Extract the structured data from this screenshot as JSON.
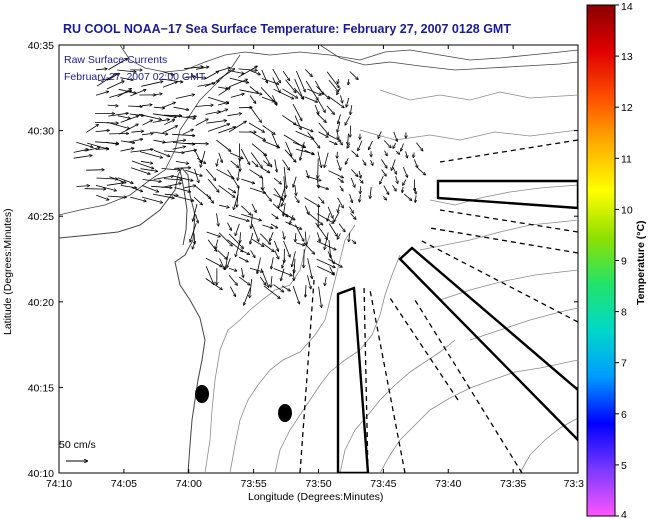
{
  "title": "RU COOL  NOAA−17  Sea Surface Temperature:  February 27, 2007 0128 GMT",
  "legend": {
    "line1": "Raw Surface Currents",
    "line2": "February 27, 2007 02:00 GMT"
  },
  "scale_label": "50 cm/s",
  "axes": {
    "xlabel": "Longitude (Degrees:Minutes)",
    "ylabel": "Latitude (Degrees:Minutes)",
    "xticks": [
      "74:10",
      "74:05",
      "74:00",
      "73:55",
      "73:50",
      "73:45",
      "73:40",
      "73:35",
      "73:3"
    ],
    "yticks": [
      "40:35",
      "40:30",
      "40:25",
      "40:20",
      "40:15",
      "40:10"
    ]
  },
  "colorbar": {
    "label": "Temperature (°C)",
    "ticks": [
      "14",
      "13",
      "12",
      "11",
      "10",
      "9",
      "8",
      "7",
      "6",
      "5",
      "4"
    ],
    "min": 4,
    "max": 14,
    "colors": [
      "#ff55ff",
      "#7a3aff",
      "#0000ff",
      "#009cff",
      "#00d8c8",
      "#22e36a",
      "#8fe000",
      "#ffff00",
      "#ffb000",
      "#ff5000",
      "#e00000",
      "#8c0000"
    ]
  },
  "colors": {
    "title": "#1a1a9c",
    "land": "#9a9a9a",
    "coast": "#444444"
  }
}
